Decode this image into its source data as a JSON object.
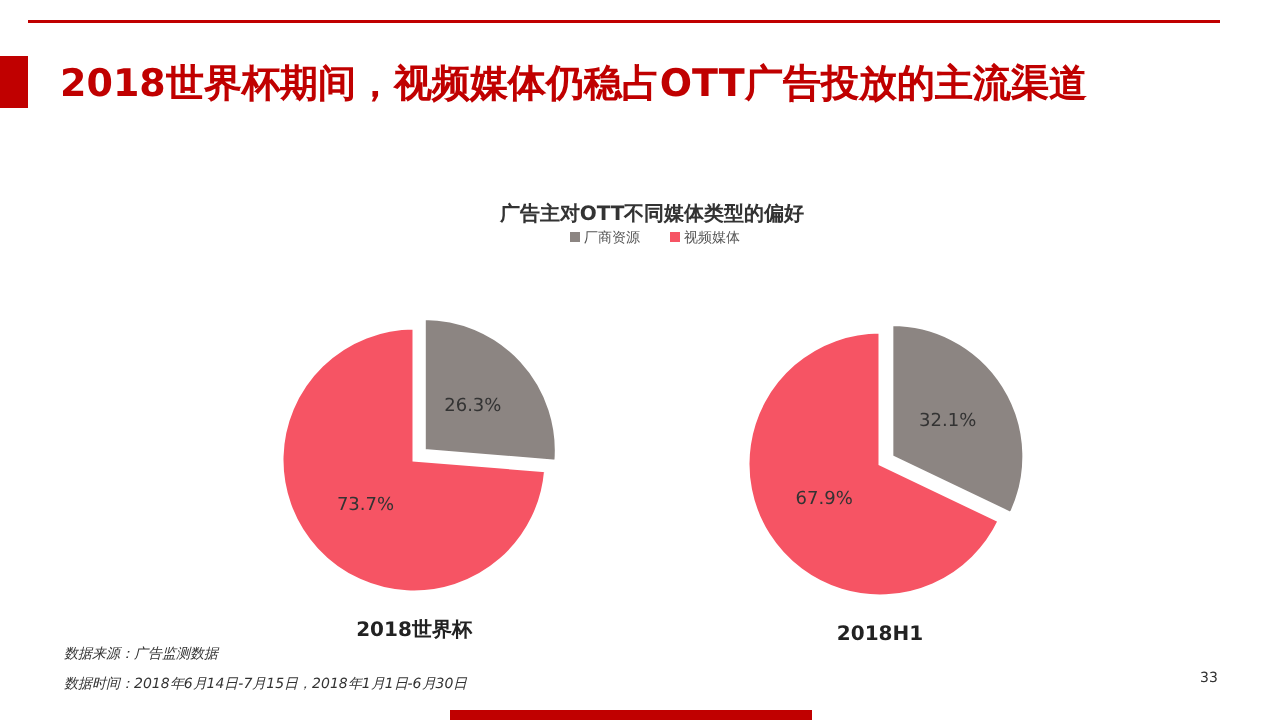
{
  "chart_data": [
    {
      "type": "pie",
      "title": "2018世界杯期间，视频媒体仍稳占OTT广告投放的主流渠道",
      "subtitle": "广告主对OTT不同媒体类型的偏好",
      "xlabel": "2018世界杯",
      "categories": [
        "厂商资源",
        "视频媒体"
      ],
      "values": [
        26.3,
        73.7
      ],
      "colors": [
        "#8c8582",
        "#f65464"
      ],
      "value_labels": [
        "26.3%",
        "73.7%"
      ],
      "legend": "top",
      "annotations": [
        "数据来源：广告监测数据",
        "数据时间：2018年6月14日-7月15日，2018年1月1日-6月30日",
        "33"
      ]
    },
    {
      "type": "pie",
      "xlabel": "2018H1",
      "categories": [
        null,
        null
      ],
      "values": [
        32.1,
        67.9
      ],
      "colors": [
        "#8c8582",
        "#f65464"
      ],
      "value_labels": [
        "32.1%",
        "67.9%"
      ]
    }
  ]
}
